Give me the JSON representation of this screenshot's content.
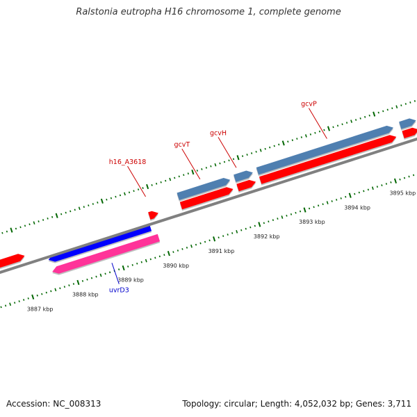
{
  "title": "Ralstonia eutropha H16 chromosome 1, complete genome",
  "footer": {
    "accession": "Accession: NC_008313",
    "summary": "Topology: circular; Length: 4,052,032 bp; Genes: 3,711"
  },
  "colors": {
    "forward_cds": "#ff0000",
    "reverse_cds": "#0000ff",
    "reverse_pink": "#ff3399",
    "rna": "#4f7fb0",
    "label_forward": "#cc0000",
    "label_reverse": "#0000cc",
    "tick": "#006600",
    "backbone": "#808080"
  },
  "view": {
    "start_kbp": 3886.5,
    "end_kbp": 3895.7
  },
  "scale": {
    "ticks_kbp": [
      3887,
      3888,
      3889,
      3890,
      3891,
      3892,
      3893,
      3894,
      3895
    ],
    "labels": [
      "3887 kbp",
      "3888 kbp",
      "3889 kbp",
      "3890 kbp",
      "3891 kbp",
      "3892 kbp",
      "3893 kbp",
      "3894 kbp",
      "3895 kbp"
    ]
  },
  "features": [
    {
      "kind": "cds",
      "strand": "forward",
      "start_kbp": 3886.4,
      "end_kbp": 3887.1,
      "color": "#ff0000"
    },
    {
      "kind": "cds",
      "strand": "reverse",
      "start_kbp": 3887.55,
      "end_kbp": 3889.8,
      "color": "#0000ff"
    },
    {
      "kind": "cds",
      "strand": "reverse",
      "start_kbp": 3887.55,
      "end_kbp": 3889.9,
      "color": "#ff3399"
    },
    {
      "kind": "cds",
      "strand": "forward",
      "start_kbp": 3889.85,
      "end_kbp": 3890.05,
      "color": "#ff0000"
    },
    {
      "kind": "cds",
      "strand": "forward",
      "start_kbp": 3890.55,
      "end_kbp": 3891.7,
      "color": "#ff0000"
    },
    {
      "kind": "cds",
      "strand": "forward",
      "start_kbp": 3891.8,
      "end_kbp": 3892.2,
      "color": "#ff0000"
    },
    {
      "kind": "cds",
      "strand": "forward",
      "start_kbp": 3892.3,
      "end_kbp": 3895.3,
      "color": "#ff0000"
    },
    {
      "kind": "cds",
      "strand": "forward",
      "start_kbp": 3895.45,
      "end_kbp": 3895.8,
      "color": "#ff0000"
    },
    {
      "kind": "region",
      "strand": "forward",
      "start_kbp": 3890.55,
      "end_kbp": 3891.7,
      "color": "#4f7fb0"
    },
    {
      "kind": "region",
      "strand": "forward",
      "start_kbp": 3891.8,
      "end_kbp": 3892.2,
      "color": "#4f7fb0"
    },
    {
      "kind": "region",
      "strand": "forward",
      "start_kbp": 3892.3,
      "end_kbp": 3895.3,
      "color": "#4f7fb0"
    },
    {
      "kind": "region",
      "strand": "forward",
      "start_kbp": 3895.45,
      "end_kbp": 3895.8,
      "color": "#4f7fb0"
    }
  ],
  "gene_labels": [
    {
      "text": "h16_A3618",
      "strand": "forward",
      "pos_kbp": 3889.9
    },
    {
      "text": "gcvT",
      "strand": "forward",
      "pos_kbp": 3891.1
    },
    {
      "text": "gcvH",
      "strand": "forward",
      "pos_kbp": 3891.9
    },
    {
      "text": "gcvP",
      "strand": "forward",
      "pos_kbp": 3893.9
    },
    {
      "text": "uvrD3",
      "strand": "reverse",
      "pos_kbp": 3888.8
    }
  ]
}
